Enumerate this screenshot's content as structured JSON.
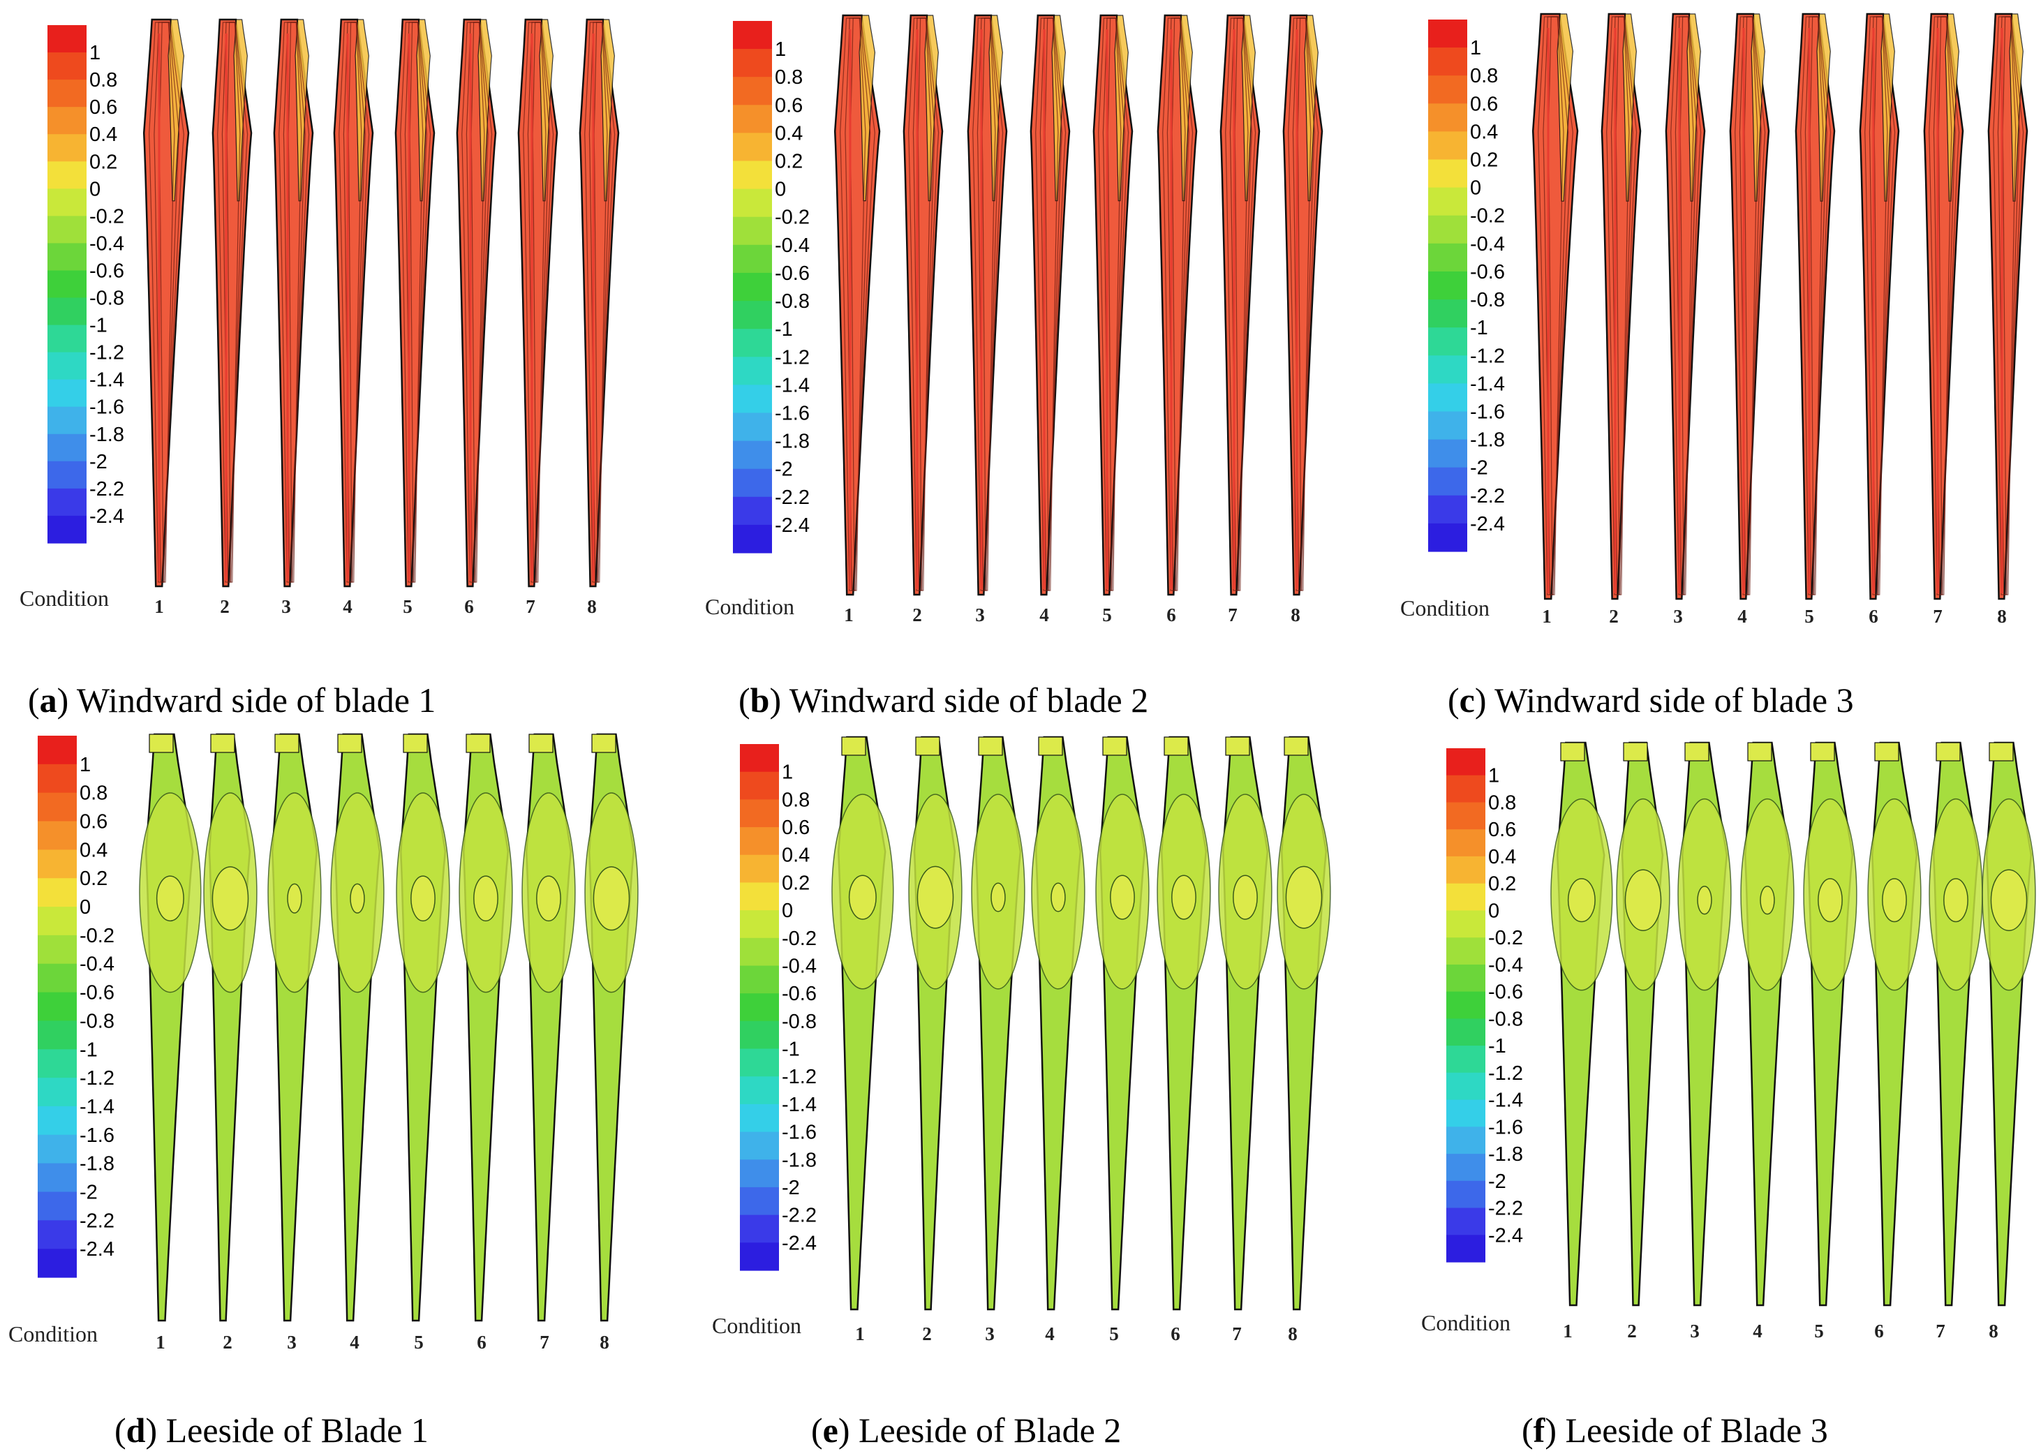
{
  "colorbar": {
    "ticks": [
      "1",
      "0.8",
      "0.6",
      "0.4",
      "0.2",
      "0",
      "-0.2",
      "-0.4",
      "-0.6",
      "-0.8",
      "-1",
      "-1.2",
      "-1.4",
      "-1.6",
      "-1.8",
      "-2",
      "-2.2",
      "-2.4"
    ],
    "colors": [
      "#e8201c",
      "#ee4a1e",
      "#f26a22",
      "#f5902a",
      "#f7b432",
      "#f3e03a",
      "#c9e83a",
      "#9fe03a",
      "#6cd63a",
      "#3ed03a",
      "#30d060",
      "#2ed896",
      "#2ed8c4",
      "#34cfe8",
      "#3fb2ea",
      "#3f8eea",
      "#3d68ea",
      "#3a3ae8",
      "#2c1ee0"
    ]
  },
  "panels": [
    {
      "key": "a",
      "caption_letter": "a",
      "caption_rest": ") Windward side of blade 1",
      "condition_label": "Condition",
      "conditions": [
        "1",
        "2",
        "3",
        "4",
        "5",
        "6",
        "7",
        "8"
      ],
      "side": "windward"
    },
    {
      "key": "b",
      "caption_letter": "b",
      "caption_rest": ") Windward side of blade 2",
      "condition_label": "Condition",
      "conditions": [
        "1",
        "2",
        "3",
        "4",
        "5",
        "6",
        "7",
        "8"
      ],
      "side": "windward"
    },
    {
      "key": "c",
      "caption_letter": "c",
      "caption_rest": ") Windward side of blade 3",
      "condition_label": "Condition",
      "conditions": [
        "1",
        "2",
        "3",
        "4",
        "5",
        "6",
        "7",
        "8"
      ],
      "side": "windward"
    },
    {
      "key": "d",
      "caption_letter": "d",
      "caption_rest": ") Leeside of Blade 1",
      "condition_label": "Condition",
      "conditions": [
        "1",
        "2",
        "3",
        "4",
        "5",
        "6",
        "7",
        "8"
      ],
      "side": "leeside"
    },
    {
      "key": "e",
      "caption_letter": "e",
      "caption_rest": ") Leeside of Blade 2",
      "condition_label": "Condition",
      "conditions": [
        "1",
        "2",
        "3",
        "4",
        "5",
        "6",
        "7",
        "8"
      ],
      "side": "leeside"
    },
    {
      "key": "f",
      "caption_letter": "f",
      "caption_rest": ") Leeside of Blade 3",
      "condition_label": "Condition",
      "conditions": [
        "1",
        "2",
        "3",
        "4",
        "5",
        "6",
        "7",
        "8"
      ],
      "side": "leeside"
    }
  ],
  "colors": {
    "windward_fill": "#ef5a3c",
    "windward_core": "#e83c30",
    "windward_edge": "#f6c13e",
    "leeside_fill": "#a6dd3e",
    "leeside_spot": "#dcea4a",
    "leeside_ring": "#c3e340",
    "outline": "#111111"
  }
}
